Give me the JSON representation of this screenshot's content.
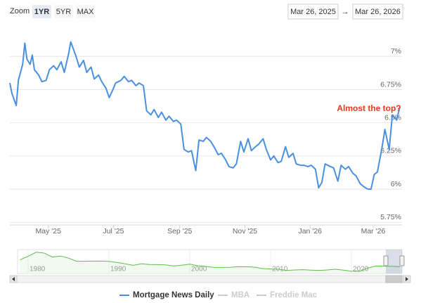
{
  "range_selector": {
    "label": "Zoom",
    "buttons": [
      {
        "label": "1YR",
        "selected": true
      },
      {
        "label": "5YR",
        "selected": false
      },
      {
        "label": "MAX",
        "selected": false
      }
    ],
    "from": "Mar 26, 2025",
    "separator": "→",
    "to": "Mar 26, 2026"
  },
  "chart_data": {
    "type": "line",
    "annotation": "Almost the top?",
    "x": [
      "2025-03-26",
      "2025-03-28",
      "2025-04-01",
      "2025-04-03",
      "2025-04-07",
      "2025-04-09",
      "2025-04-11",
      "2025-04-14",
      "2025-04-16",
      "2025-04-18",
      "2025-04-22",
      "2025-04-25",
      "2025-04-29",
      "2025-05-02",
      "2025-05-06",
      "2025-05-09",
      "2025-05-13",
      "2025-05-16",
      "2025-05-20",
      "2025-05-22",
      "2025-05-27",
      "2025-05-30",
      "2025-06-03",
      "2025-06-06",
      "2025-06-10",
      "2025-06-13",
      "2025-06-17",
      "2025-06-20",
      "2025-06-24",
      "2025-06-27",
      "2025-07-01",
      "2025-07-03",
      "2025-07-08",
      "2025-07-11",
      "2025-07-15",
      "2025-07-18",
      "2025-07-22",
      "2025-07-25",
      "2025-07-29",
      "2025-08-01",
      "2025-08-05",
      "2025-08-08",
      "2025-08-12",
      "2025-08-15",
      "2025-08-19",
      "2025-08-22",
      "2025-08-26",
      "2025-08-29",
      "2025-09-02",
      "2025-09-05",
      "2025-09-09",
      "2025-09-12",
      "2025-09-16",
      "2025-09-19",
      "2025-09-23",
      "2025-09-26",
      "2025-09-30",
      "2025-10-03",
      "2025-10-07",
      "2025-10-10",
      "2025-10-14",
      "2025-10-17",
      "2025-10-21",
      "2025-10-24",
      "2025-10-28",
      "2025-10-31",
      "2025-11-04",
      "2025-11-07",
      "2025-11-11",
      "2025-11-14",
      "2025-11-18",
      "2025-11-21",
      "2025-11-25",
      "2025-11-28",
      "2025-12-02",
      "2025-12-05",
      "2025-12-09",
      "2025-12-12",
      "2025-12-16",
      "2025-12-19",
      "2025-12-23",
      "2025-12-26",
      "2025-12-30",
      "2026-01-02",
      "2026-01-06",
      "2026-01-09",
      "2026-01-12",
      "2026-01-15",
      "2026-01-20",
      "2026-01-23",
      "2026-01-27",
      "2026-01-30",
      "2026-02-03",
      "2026-02-06",
      "2026-02-10",
      "2026-02-13",
      "2026-02-17",
      "2026-02-20",
      "2026-02-24",
      "2026-02-27",
      "2026-03-02",
      "2026-03-05",
      "2026-03-09",
      "2026-03-12",
      "2026-03-16",
      "2026-03-19",
      "2026-03-23",
      "2026-03-26"
    ],
    "series": [
      {
        "name": "Mortgage News Daily",
        "color": "#4a90e2",
        "visible": true,
        "values": [
          6.8,
          6.72,
          6.63,
          6.82,
          6.94,
          7.1,
          6.98,
          6.94,
          7.01,
          6.9,
          6.86,
          6.81,
          6.82,
          6.9,
          6.93,
          6.9,
          6.96,
          6.88,
          7.02,
          7.11,
          7.0,
          6.92,
          6.97,
          6.88,
          6.92,
          6.83,
          6.86,
          6.81,
          6.76,
          6.69,
          6.76,
          6.8,
          6.82,
          6.85,
          6.81,
          6.82,
          6.78,
          6.8,
          6.78,
          6.59,
          6.56,
          6.6,
          6.54,
          6.58,
          6.52,
          6.55,
          6.51,
          6.52,
          6.49,
          6.3,
          6.28,
          6.29,
          6.14,
          6.37,
          6.36,
          6.39,
          6.36,
          6.32,
          6.26,
          6.27,
          6.22,
          6.17,
          6.16,
          6.19,
          6.36,
          6.28,
          6.38,
          6.29,
          6.32,
          6.34,
          6.38,
          6.3,
          6.22,
          6.25,
          6.2,
          6.21,
          6.32,
          6.24,
          6.27,
          6.19,
          6.18,
          6.18,
          6.17,
          6.18,
          6.15,
          6.01,
          6.05,
          6.19,
          6.17,
          6.16,
          6.06,
          6.18,
          6.15,
          6.17,
          6.12,
          6.1,
          6.04,
          6.02,
          6.0,
          6.0,
          6.11,
          6.13,
          6.3,
          6.45,
          6.3,
          6.56,
          6.52,
          6.62
        ]
      },
      {
        "name": "MBA",
        "color": "#cccccc",
        "visible": false
      },
      {
        "name": "Freddie Mac",
        "color": "#cccccc",
        "visible": false
      }
    ],
    "xlim": [
      "2025-03-26",
      "2026-03-28"
    ],
    "xticks": [
      {
        "value": "2025-05-01",
        "label": "May '25"
      },
      {
        "value": "2025-07-01",
        "label": "Jul '25"
      },
      {
        "value": "2025-09-01",
        "label": "Sep '25"
      },
      {
        "value": "2025-11-01",
        "label": "Nov '25"
      },
      {
        "value": "2026-01-01",
        "label": "Jan '26"
      },
      {
        "value": "2026-03-01",
        "label": "Mar '26"
      }
    ],
    "ylim": [
      5.73,
      7.24
    ],
    "yticks": [
      {
        "value": 5.75,
        "label": "5.75%"
      },
      {
        "value": 6,
        "label": "6%"
      },
      {
        "value": 6.25,
        "label": "6.25%"
      },
      {
        "value": 6.5,
        "label": "6.5%"
      },
      {
        "value": 6.75,
        "label": "6.75%"
      },
      {
        "value": 7,
        "label": "7%"
      }
    ],
    "grid": true,
    "navigator": {
      "color": "#5cc04a",
      "x": [
        1979,
        1980,
        1981,
        1982,
        1983,
        1984,
        1985,
        1986,
        1987,
        1988,
        1989,
        1990,
        1991,
        1992,
        1993,
        1994,
        1995,
        1996,
        1997,
        1998,
        1999,
        2000,
        2001,
        2002,
        2003,
        2004,
        2005,
        2006,
        2007,
        2008,
        2009,
        2010,
        2011,
        2012,
        2013,
        2014,
        2015,
        2016,
        2017,
        2018,
        2019,
        2020,
        2021,
        2022,
        2023,
        2024,
        2025,
        2026
      ],
      "values": [
        11.2,
        13.7,
        16.6,
        16.0,
        13.2,
        13.9,
        12.4,
        10.2,
        10.2,
        10.3,
        10.3,
        10.1,
        9.3,
        8.4,
        7.3,
        8.4,
        7.9,
        7.8,
        7.6,
        6.9,
        7.4,
        8.1,
        7.0,
        6.5,
        5.8,
        5.8,
        5.9,
        6.4,
        6.3,
        6.0,
        5.0,
        4.7,
        4.5,
        3.7,
        4.0,
        4.2,
        3.9,
        3.7,
        4.0,
        4.5,
        3.9,
        3.1,
        3.0,
        5.3,
        6.8,
        6.7,
        6.6,
        6.3
      ],
      "xlim": [
        1978.7,
        2026.25
      ],
      "xticks": [
        1980,
        1990,
        2000,
        2010,
        2020
      ],
      "ylim": [
        2,
        18
      ]
    }
  }
}
